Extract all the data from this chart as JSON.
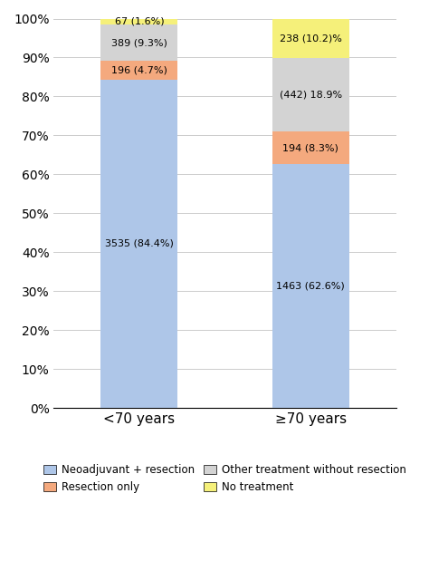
{
  "categories": [
    "<70 years",
    "≥70 years"
  ],
  "segments": {
    "Neoadjuvant + resection": {
      "values": [
        84.4,
        62.6
      ],
      "labels": [
        "3535 (84.4%)",
        "1463 (62.6%)"
      ],
      "color": "#aec6e8"
    },
    "Resection only": {
      "values": [
        4.7,
        8.3
      ],
      "labels": [
        "196 (4.7%)",
        "194 (8.3%)"
      ],
      "color": "#f4a97e"
    },
    "Other treatment without resection": {
      "values": [
        9.3,
        18.9
      ],
      "labels": [
        "389 (9.3%)",
        "(442) 18.9%"
      ],
      "color": "#d3d3d3"
    },
    "No treatment": {
      "values": [
        1.6,
        10.2
      ],
      "labels": [
        "67 (1.6%)",
        "238 (10.2)%"
      ],
      "color": "#f5f07a"
    }
  },
  "ylim": [
    0,
    100
  ],
  "yticks": [
    0,
    10,
    20,
    30,
    40,
    50,
    60,
    70,
    80,
    90,
    100
  ],
  "ytick_labels": [
    "0%",
    "10%",
    "20%",
    "30%",
    "40%",
    "50%",
    "60%",
    "70%",
    "80%",
    "90%",
    "100%"
  ],
  "bar_width": 0.45,
  "background_color": "#ffffff",
  "legend_order": [
    "Neoadjuvant + resection",
    "Resection only",
    "Other treatment without resection",
    "No treatment"
  ]
}
